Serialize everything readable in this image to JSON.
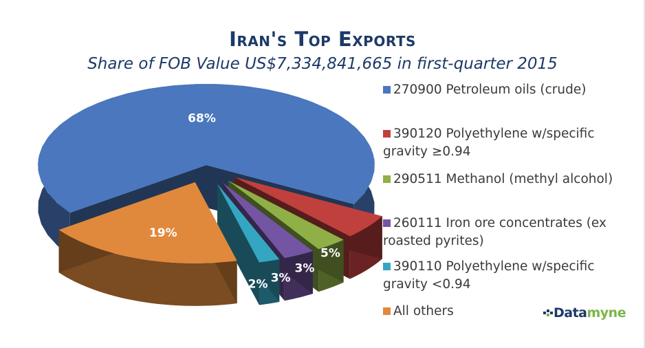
{
  "chart_data": {
    "type": "pie",
    "title": "Iran's Top Exports",
    "subtitle": "Share of FOB Value US$7,334,841,665 in first-quarter 2015",
    "slices": [
      {
        "label": "270900 Petroleum oils (crude)",
        "lines": [
          "270900 Petroleum oils (crude)"
        ],
        "value": 68,
        "value_label": "68%",
        "color": "#4a77bd"
      },
      {
        "label": "390120 Polyethylene w/specific gravity ≥0.94",
        "lines": [
          "390120 Polyethylene w/specific",
          "gravity ≥0.94"
        ],
        "value": 5,
        "value_label": "5%",
        "color": "#c0403e"
      },
      {
        "label": "290511 Methanol (methyl alcohol)",
        "lines": [
          "290511 Methanol (methyl alcohol)"
        ],
        "value": 3,
        "value_label": "3%",
        "color": "#8eb046"
      },
      {
        "label": "260111 Iron ore concentrates (ex roasted pyrites)",
        "lines": [
          "260111 Iron ore concentrates (ex",
          "roasted pyrites)"
        ],
        "value": 3,
        "value_label": "3%",
        "color": "#7355a3"
      },
      {
        "label": "390110 Polyethylene w/specific gravity <0.94",
        "lines": [
          "390110 Polyethylene w/specific",
          "gravity <0.94"
        ],
        "value": 2,
        "value_label": "2%",
        "color": "#35a6c2"
      },
      {
        "label": "All others",
        "lines": [
          "All others"
        ],
        "value": 19,
        "value_label": "19%",
        "color": "#e0893c"
      }
    ],
    "legend_position": "right",
    "three_d": true,
    "exploded": true
  },
  "branding": {
    "logo_text_a": "Data",
    "logo_text_b": "myne"
  }
}
